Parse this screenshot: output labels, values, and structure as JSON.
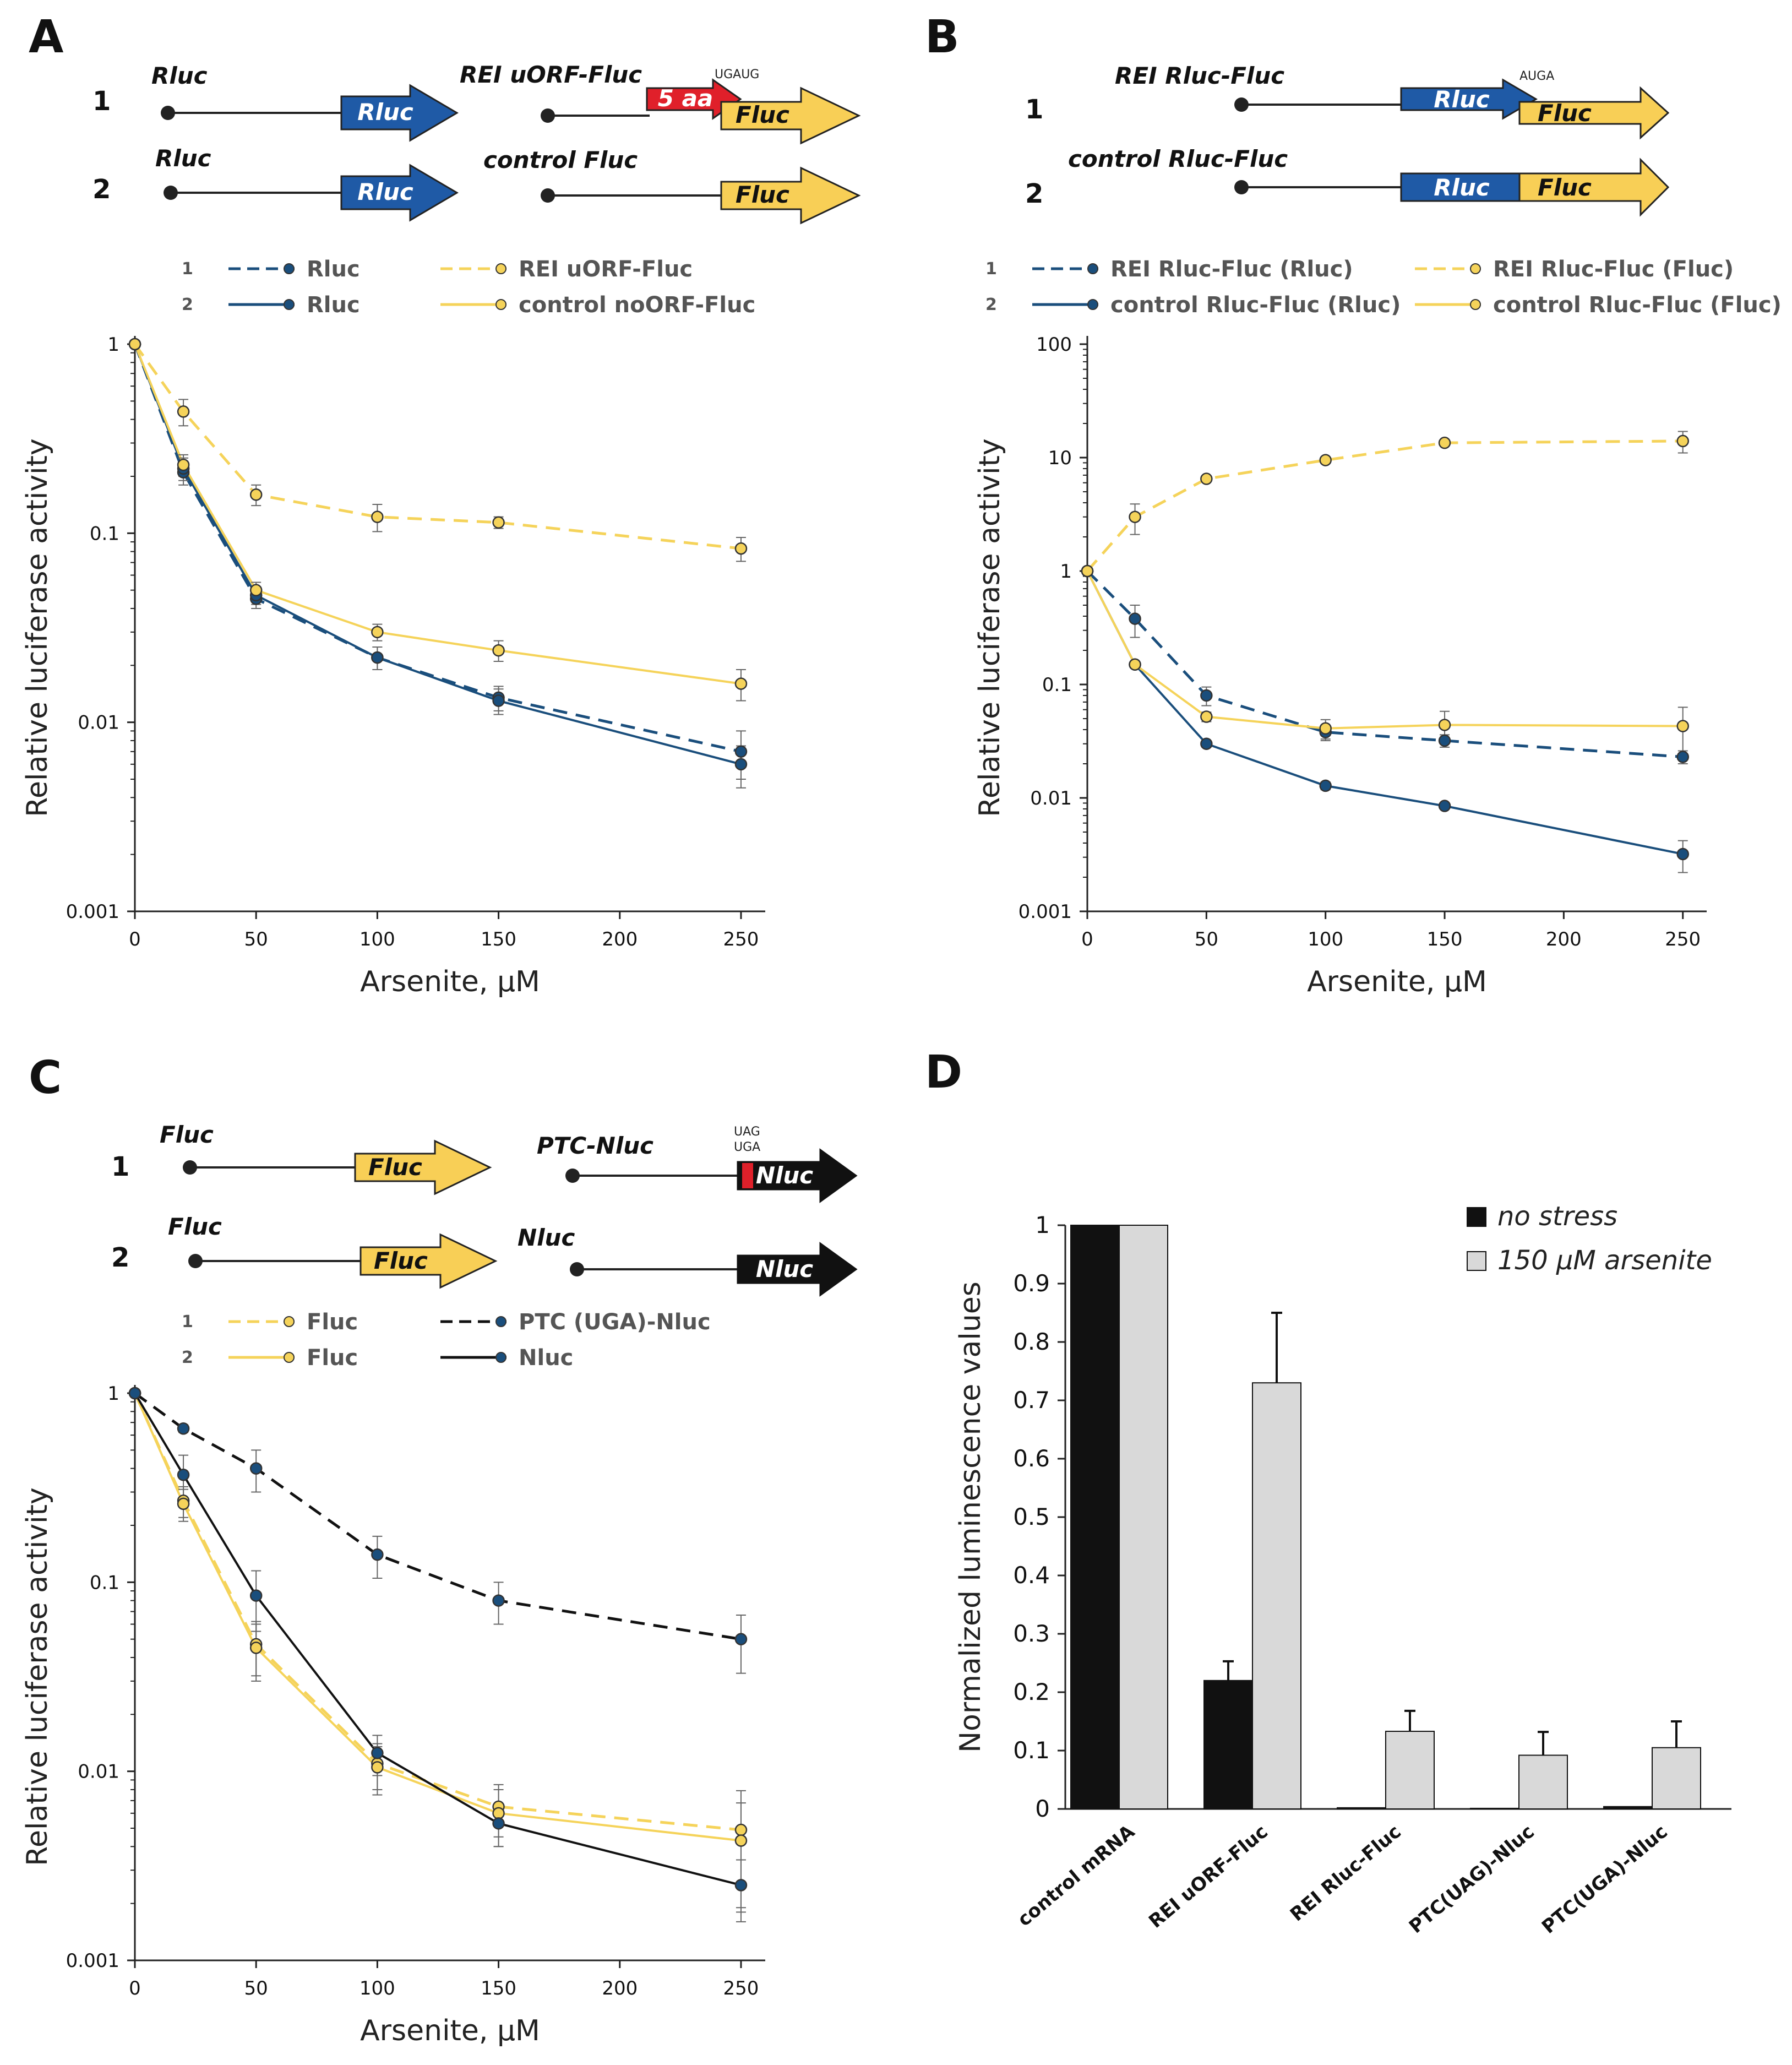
{
  "colors": {
    "navy": "#1a4e7c",
    "yellow": "#f5d35a",
    "black": "#111111",
    "gray_bar": "#d9d9d9",
    "red": "#e0202a",
    "blue_box": "#1f5aa6",
    "yellow_box": "#f8cf56"
  },
  "panels": {
    "A": {
      "letter": "A",
      "constructs": [
        {
          "num": "1",
          "left_label": "Rluc",
          "left_gene": "Rluc",
          "right_label": "REI uORF-Fluc",
          "uorf": "5 aa",
          "codon": "UGAUG",
          "right_gene": "Fluc"
        },
        {
          "num": "2",
          "left_label": "Rluc",
          "left_gene": "Rluc",
          "right_label": "control Fluc",
          "right_gene": "Fluc"
        }
      ]
    },
    "B": {
      "letter": "B",
      "constructs": [
        {
          "num": "1",
          "label": "REI Rluc-Fluc",
          "gene1": "Rluc",
          "gene2": "Fluc",
          "codon": "AUGA"
        },
        {
          "num": "2",
          "label": "control Rluc-Fluc",
          "gene1": "Rluc",
          "gene2": "Fluc"
        }
      ]
    },
    "C": {
      "letter": "C",
      "constructs": [
        {
          "num": "1",
          "left_label": "Fluc",
          "left_gene": "Fluc",
          "right_label": "PTC-Nluc",
          "codon1": "UAG",
          "codon2": "UGA",
          "right_gene": "Nluc"
        },
        {
          "num": "2",
          "left_label": "Fluc",
          "left_gene": "Fluc",
          "right_label": "Nluc",
          "right_gene": "Nluc"
        }
      ]
    },
    "D": {
      "letter": "D"
    }
  },
  "chart_data": [
    {
      "panel": "A",
      "type": "line",
      "xlabel": "Arsenite, µM",
      "ylabel": "Relative luciferase activity",
      "xlim": [
        0,
        260
      ],
      "ylim": [
        0.001,
        1
      ],
      "yscale": "log",
      "x_ticks": [
        "0",
        "50",
        "100",
        "150",
        "200",
        "250"
      ],
      "x_tick_values": [
        0,
        50,
        100,
        150,
        200,
        250
      ],
      "y_ticks": [
        "0.001",
        "0.01",
        "0.1",
        "1"
      ],
      "y_tick_values": [
        0.001,
        0.01,
        0.1,
        1
      ],
      "series": [
        {
          "legend_num": "1",
          "name": "Rluc",
          "color": "#1a4e7c",
          "dash": true,
          "marker": "dark",
          "x": [
            0,
            20,
            50,
            100,
            150,
            250
          ],
          "y": [
            1,
            0.21,
            0.045,
            0.022,
            0.0135,
            0.007
          ],
          "err": [
            0,
            0.03,
            0.005,
            0.003,
            0.002,
            0.002
          ]
        },
        {
          "legend_num": "2",
          "name": "Rluc",
          "color": "#1a4e7c",
          "dash": false,
          "marker": "dark",
          "x": [
            0,
            20,
            50,
            100,
            150,
            250
          ],
          "y": [
            1,
            0.22,
            0.047,
            0.022,
            0.013,
            0.006
          ],
          "err": [
            0,
            0.03,
            0.005,
            0.003,
            0.002,
            0.0015
          ]
        },
        {
          "legend_num": "1",
          "name": "REI uORF-Fluc",
          "color": "#f5d35a",
          "dash": true,
          "marker": "light",
          "x": [
            0,
            20,
            50,
            100,
            150,
            250
          ],
          "y": [
            1,
            0.44,
            0.16,
            0.122,
            0.114,
            0.083
          ],
          "err": [
            0,
            0.07,
            0.02,
            0.02,
            0.008,
            0.012
          ]
        },
        {
          "legend_num": "2",
          "name": "control noORF-Fluc",
          "color": "#f5d35a",
          "dash": false,
          "marker": "light",
          "x": [
            0,
            20,
            50,
            100,
            150,
            250
          ],
          "y": [
            1,
            0.23,
            0.05,
            0.03,
            0.024,
            0.016
          ],
          "err": [
            0,
            0.03,
            0.005,
            0.003,
            0.003,
            0.003
          ]
        }
      ]
    },
    {
      "panel": "B",
      "type": "line",
      "xlabel": "Arsenite, µM",
      "ylabel": "Relative luciferase activity",
      "xlim": [
        0,
        260
      ],
      "ylim": [
        0.001,
        100
      ],
      "yscale": "log",
      "x_ticks": [
        "0",
        "50",
        "100",
        "150",
        "200",
        "250"
      ],
      "x_tick_values": [
        0,
        50,
        100,
        150,
        200,
        250
      ],
      "y_ticks": [
        "0.001",
        "0.01",
        "0.1",
        "1",
        "10",
        "100"
      ],
      "y_tick_values": [
        0.001,
        0.01,
        0.1,
        1,
        10,
        100
      ],
      "series": [
        {
          "legend_num": "1",
          "name": "REI Rluc-Fluc (Rluc)",
          "color": "#1a4e7c",
          "dash": true,
          "marker": "dark",
          "x": [
            0,
            20,
            50,
            100,
            150,
            250
          ],
          "y": [
            1,
            0.38,
            0.08,
            0.038,
            0.032,
            0.023
          ],
          "err": [
            0,
            0.12,
            0.015,
            0.006,
            0.004,
            0.003
          ]
        },
        {
          "legend_num": "2",
          "name": "control Rluc-Fluc (Rluc)",
          "color": "#1a4e7c",
          "dash": false,
          "marker": "dark",
          "x": [
            0,
            20,
            50,
            100,
            150,
            250
          ],
          "y": [
            1,
            0.15,
            0.03,
            0.0128,
            0.0085,
            0.0032
          ],
          "err": [
            0,
            0.01,
            0.002,
            0.001,
            0.0005,
            0.001
          ]
        },
        {
          "legend_num": "1",
          "name": "REI Rluc-Fluc (Fluc)",
          "color": "#f5d35a",
          "dash": true,
          "marker": "light",
          "x": [
            0,
            20,
            50,
            100,
            150,
            250
          ],
          "y": [
            1,
            3.0,
            6.5,
            9.5,
            13.5,
            14.0
          ],
          "err": [
            0,
            0.9,
            0.4,
            0.5,
            0.8,
            3.0
          ]
        },
        {
          "legend_num": "2",
          "name": "control Rluc-Fluc (Fluc)",
          "color": "#f5d35a",
          "dash": false,
          "marker": "light",
          "x": [
            0,
            20,
            50,
            100,
            150,
            250
          ],
          "y": [
            1,
            0.15,
            0.052,
            0.041,
            0.044,
            0.043
          ],
          "err": [
            0,
            0.01,
            0.005,
            0.008,
            0.014,
            0.02
          ]
        }
      ]
    },
    {
      "panel": "C",
      "type": "line",
      "xlabel": "Arsenite, µM",
      "ylabel": "Relative luciferase activity",
      "xlim": [
        0,
        260
      ],
      "ylim": [
        0.001,
        1
      ],
      "yscale": "log",
      "x_ticks": [
        "0",
        "50",
        "100",
        "150",
        "200",
        "250"
      ],
      "x_tick_values": [
        0,
        50,
        100,
        150,
        200,
        250
      ],
      "y_ticks": [
        "0.001",
        "0.01",
        "0.1",
        "1"
      ],
      "y_tick_values": [
        0.001,
        0.01,
        0.1,
        1
      ],
      "series": [
        {
          "legend_num": "1",
          "name": "Fluc",
          "color": "#f5d35a",
          "dash": true,
          "marker": "light",
          "x": [
            0,
            20,
            50,
            100,
            150,
            250
          ],
          "y": [
            1,
            0.27,
            0.047,
            0.011,
            0.0065,
            0.0049
          ],
          "err": [
            0,
            0.05,
            0.015,
            0.003,
            0.002,
            0.003
          ]
        },
        {
          "legend_num": "2",
          "name": "Fluc",
          "color": "#f5d35a",
          "dash": false,
          "marker": "light",
          "x": [
            0,
            20,
            50,
            100,
            150,
            250
          ],
          "y": [
            1,
            0.26,
            0.045,
            0.0105,
            0.006,
            0.0043
          ],
          "err": [
            0,
            0.05,
            0.015,
            0.003,
            0.002,
            0.0025
          ]
        },
        {
          "legend_num": "1",
          "name": "PTC (UGA)-Nluc",
          "color": "#111111",
          "dash": true,
          "marker": "dark",
          "x": [
            0,
            20,
            50,
            100,
            150,
            250
          ],
          "y": [
            1,
            0.65,
            0.4,
            0.14,
            0.08,
            0.05
          ],
          "err": [
            0,
            0.03,
            0.1,
            0.035,
            0.02,
            0.017
          ]
        },
        {
          "legend_num": "2",
          "name": "Nluc",
          "color": "#111111",
          "dash": false,
          "marker": "dark",
          "x": [
            0,
            20,
            50,
            100,
            150,
            250
          ],
          "y": [
            1,
            0.37,
            0.085,
            0.0125,
            0.0053,
            0.0025
          ],
          "err": [
            0,
            0.1,
            0.03,
            0.003,
            0.0013,
            0.0009
          ]
        }
      ]
    },
    {
      "panel": "D",
      "type": "bar",
      "ylabel": "Normalized luminescence values",
      "ylim": [
        0,
        1
      ],
      "y_ticks": [
        "0",
        "0.1",
        "0.2",
        "0.3",
        "0.4",
        "0.5",
        "0.6",
        "0.7",
        "0.8",
        "0.9",
        "1"
      ],
      "y_tick_values": [
        0,
        0.1,
        0.2,
        0.3,
        0.4,
        0.5,
        0.6,
        0.7,
        0.8,
        0.9,
        1
      ],
      "categories": [
        "control mRNA",
        "REI uORF-Fluc",
        "REI Rluc-Fluc",
        "PTC(UAG)-Nluc",
        "PTC(UGA)-Nluc"
      ],
      "series": [
        {
          "name": "no stress",
          "color": "#111111",
          "values": [
            1,
            0.22,
            0.002,
            0.001,
            0.004
          ],
          "err": [
            0,
            0.033,
            0,
            0,
            0
          ]
        },
        {
          "name": "150 μM arsenite",
          "color": "#d9d9d9",
          "values": [
            1,
            0.73,
            0.133,
            0.092,
            0.105
          ],
          "err": [
            0,
            0.12,
            0.035,
            0.04,
            0.045
          ]
        }
      ]
    }
  ]
}
